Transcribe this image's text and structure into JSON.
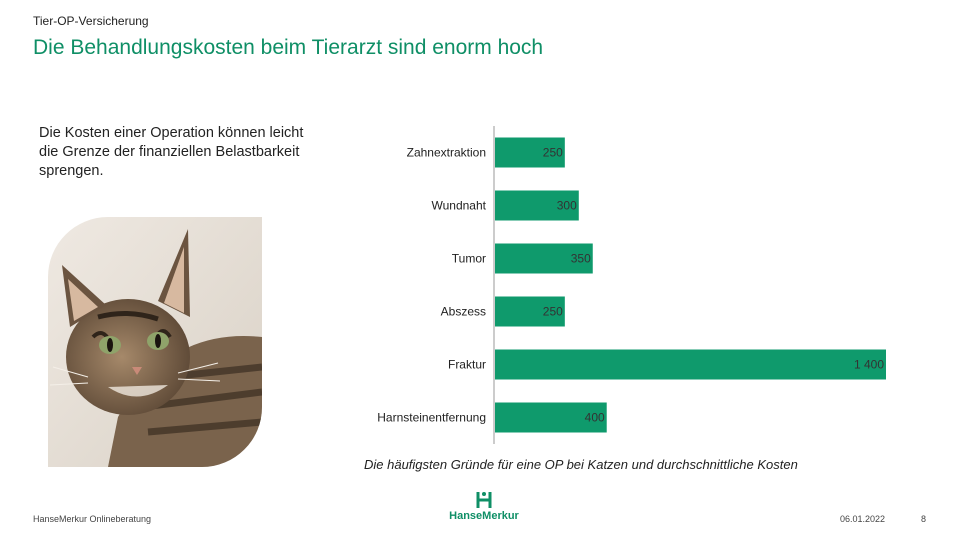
{
  "header": {
    "kicker": "Tier-OP-Versicherung",
    "title": "Die Behandlungskosten beim Tierarzt sind enorm hoch"
  },
  "intro_text": "Die Kosten einer Operation können leicht die Grenze der finanziellen Belastbarkeit sprengen.",
  "image": {
    "subject": "cat-photo"
  },
  "chart_data": {
    "type": "bar",
    "orientation": "horizontal",
    "categories": [
      "Zahnextraktion",
      "Wundnaht",
      "Tumor",
      "Abszess",
      "Fraktur",
      "Harnsteinentfernung"
    ],
    "values": [
      250,
      300,
      350,
      250,
      1400,
      400
    ],
    "value_labels": [
      "250",
      "300",
      "350",
      "250",
      "1 400",
      "400"
    ],
    "xlim": [
      0,
      1400
    ],
    "grid": false,
    "legend": "none",
    "bar_color": "#0f9a6c"
  },
  "caption": "Die häufigsten Gründe für eine OP bei Katzen und durchschnittliche Kosten",
  "footer": {
    "left": "HanseMerkur Onlineberatung",
    "logo_text": "HanseMerkur",
    "date": "06.01.2022",
    "page": "8"
  },
  "colors": {
    "accent": "#0f8f66",
    "bar": "#0f9a6c"
  }
}
